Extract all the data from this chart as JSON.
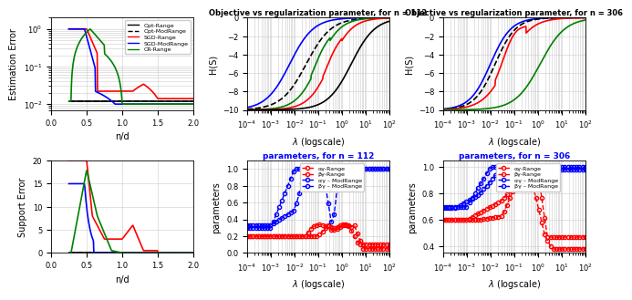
{
  "subplot_titles_top": [
    "Objective vs regularization parameter, for n = 112",
    "Objective vs regularization parameter, for n = 306"
  ],
  "subplot_titles_bot": [
    "parameters, for n = 112",
    "parameters, for n = 306"
  ],
  "legend_top_left": [
    "Opt-Range",
    "Opt-ModRange",
    "SGD-Range",
    "SGD-ModRange",
    "CR-Range"
  ],
  "legend_bot": [
    "αγ-Range",
    "βγ-Range",
    "αγ – ModRange",
    "βγ – ModRange"
  ],
  "bg_color": "#ffffff",
  "grid_color": "#cccccc"
}
